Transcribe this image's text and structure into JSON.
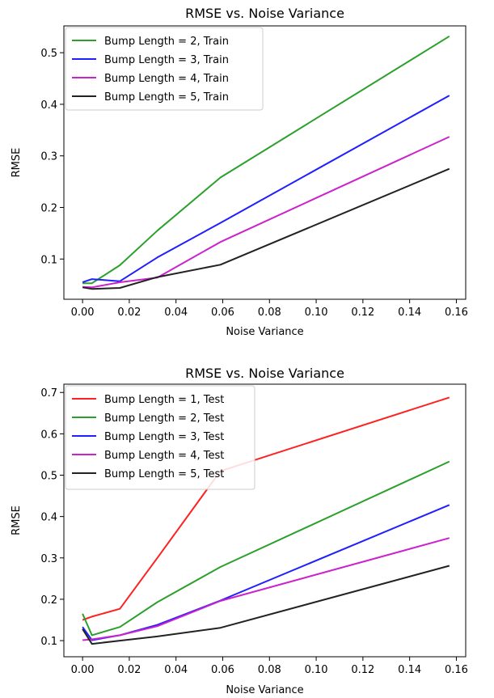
{
  "chart_data": [
    {
      "type": "line",
      "title": "RMSE vs. Noise Variance",
      "xlabel": "Noise Variance",
      "ylabel": "RMSE",
      "xlim": [
        -0.008,
        0.164
      ],
      "ylim": [
        0.022,
        0.552
      ],
      "xticks": [
        0.0,
        0.02,
        0.04,
        0.06,
        0.08,
        0.1,
        0.12,
        0.14,
        0.16
      ],
      "xtick_labels": [
        "0.00",
        "0.02",
        "0.04",
        "0.06",
        "0.08",
        "0.10",
        "0.12",
        "0.14",
        "0.16"
      ],
      "yticks": [
        0.1,
        0.2,
        0.3,
        0.4,
        0.5
      ],
      "ytick_labels": [
        "0.1",
        "0.2",
        "0.3",
        "0.4",
        "0.5"
      ],
      "grid": false,
      "legend_position": "upper-left",
      "series": [
        {
          "name": "Bump Length = 2, Train",
          "color": "#2ca02c",
          "x": [
            0.0,
            0.004,
            0.016,
            0.032,
            0.059,
            0.157
          ],
          "y": [
            0.053,
            0.053,
            0.088,
            0.155,
            0.258,
            0.532
          ]
        },
        {
          "name": "Bump Length = 3, Train",
          "color": "#1f1fff",
          "x": [
            0.0,
            0.004,
            0.016,
            0.032,
            0.059,
            0.157
          ],
          "y": [
            0.055,
            0.061,
            0.057,
            0.103,
            0.17,
            0.417
          ]
        },
        {
          "name": "Bump Length = 4, Train",
          "color": "#cc22cc",
          "x": [
            0.0,
            0.004,
            0.016,
            0.032,
            0.059,
            0.157
          ],
          "y": [
            0.046,
            0.045,
            0.055,
            0.064,
            0.133,
            0.337
          ]
        },
        {
          "name": "Bump Length = 5, Train",
          "color": "#222222",
          "x": [
            0.0,
            0.004,
            0.016,
            0.032,
            0.059,
            0.157
          ],
          "y": [
            0.045,
            0.042,
            0.044,
            0.065,
            0.089,
            0.275
          ]
        }
      ]
    },
    {
      "type": "line",
      "title": "RMSE vs. Noise Variance",
      "xlabel": "Noise Variance",
      "ylabel": "RMSE",
      "xlim": [
        -0.008,
        0.164
      ],
      "ylim": [
        0.061,
        0.72
      ],
      "xticks": [
        0.0,
        0.02,
        0.04,
        0.06,
        0.08,
        0.1,
        0.12,
        0.14,
        0.16
      ],
      "xtick_labels": [
        "0.00",
        "0.02",
        "0.04",
        "0.06",
        "0.08",
        "0.10",
        "0.12",
        "0.14",
        "0.16"
      ],
      "yticks": [
        0.1,
        0.2,
        0.3,
        0.4,
        0.5,
        0.6,
        0.7
      ],
      "ytick_labels": [
        "0.1",
        "0.2",
        "0.3",
        "0.4",
        "0.5",
        "0.6",
        "0.7"
      ],
      "grid": false,
      "legend_position": "upper-left",
      "series": [
        {
          "name": "Bump Length = 1, Test",
          "color": "#ff2020",
          "x": [
            0.0,
            0.004,
            0.016,
            0.032,
            0.059,
            0.157
          ],
          "y": [
            0.15,
            0.158,
            0.177,
            0.3,
            0.51,
            0.688
          ]
        },
        {
          "name": "Bump Length = 2, Test",
          "color": "#2ca02c",
          "x": [
            0.0,
            0.004,
            0.016,
            0.032,
            0.059,
            0.157
          ],
          "y": [
            0.165,
            0.113,
            0.133,
            0.193,
            0.278,
            0.533
          ]
        },
        {
          "name": "Bump Length = 3, Test",
          "color": "#1f1fff",
          "x": [
            0.0,
            0.004,
            0.016,
            0.032,
            0.059,
            0.157
          ],
          "y": [
            0.133,
            0.101,
            0.113,
            0.138,
            0.197,
            0.428
          ]
        },
        {
          "name": "Bump Length = 4, Test",
          "color": "#cc22cc",
          "x": [
            0.0,
            0.004,
            0.016,
            0.032,
            0.059,
            0.157
          ],
          "y": [
            0.101,
            0.103,
            0.113,
            0.135,
            0.196,
            0.348
          ]
        },
        {
          "name": "Bump Length = 5, Test",
          "color": "#222222",
          "x": [
            0.0,
            0.004,
            0.016,
            0.032,
            0.059,
            0.157
          ],
          "y": [
            0.128,
            0.092,
            0.1,
            0.11,
            0.131,
            0.281
          ]
        }
      ]
    }
  ]
}
